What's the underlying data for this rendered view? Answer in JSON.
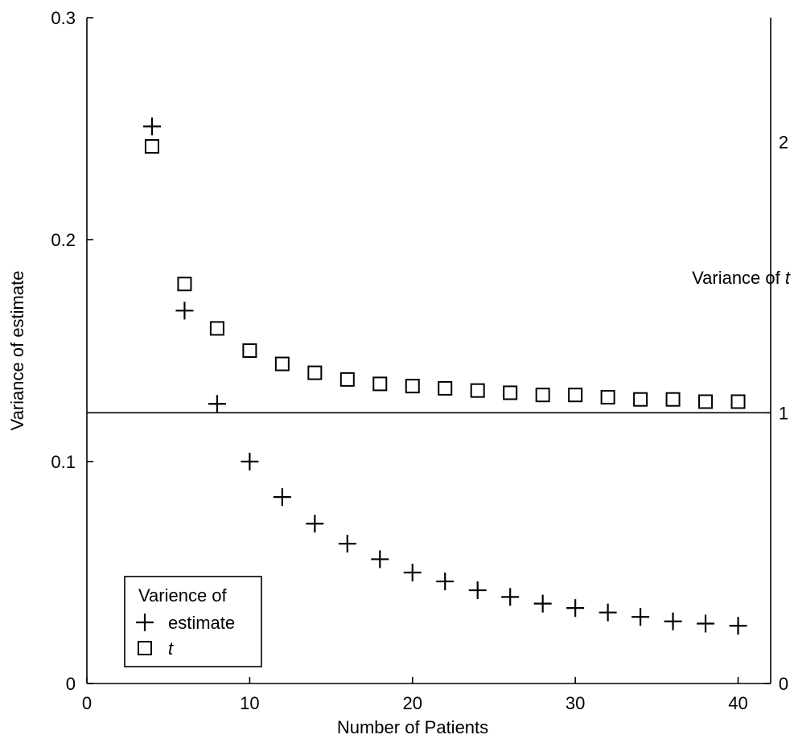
{
  "chart_data": {
    "type": "scatter",
    "xlabel": "Number of Patients",
    "ylabel": "Variance of estimate",
    "xlim": [
      0,
      42
    ],
    "ylim": [
      0,
      0.3
    ],
    "x_ticks": [
      "0",
      "10",
      "20",
      "30",
      "40"
    ],
    "y_ticks": [
      "0",
      "0.1",
      "0.2",
      "0.3"
    ],
    "right_axis": {
      "label_prefix": "Variance of ",
      "label_italic": "t",
      "ticks": [
        {
          "label": "0",
          "value": 0
        },
        {
          "label": "1",
          "value": 0.122
        },
        {
          "label": "2",
          "value": 0.244
        }
      ]
    },
    "reference_line": {
      "y": 0.122
    },
    "legend": {
      "title": "Varience of",
      "placement": "bottom-left",
      "entries": [
        {
          "marker": "plus",
          "label": "estimate",
          "italic": false
        },
        {
          "marker": "square",
          "label": "t",
          "italic": true
        }
      ]
    },
    "series": [
      {
        "name": "estimate",
        "marker": "plus",
        "x": [
          4,
          6,
          8,
          10,
          12,
          14,
          16,
          18,
          20,
          22,
          24,
          26,
          28,
          30,
          32,
          34,
          36,
          38,
          40
        ],
        "values": [
          0.251,
          0.168,
          0.126,
          0.1,
          0.084,
          0.072,
          0.063,
          0.056,
          0.05,
          0.046,
          0.042,
          0.039,
          0.036,
          0.034,
          0.032,
          0.03,
          0.028,
          0.027,
          0.026
        ]
      },
      {
        "name": "t",
        "marker": "square",
        "x": [
          4,
          6,
          8,
          10,
          12,
          14,
          16,
          18,
          20,
          22,
          24,
          26,
          28,
          30,
          32,
          34,
          36,
          38,
          40
        ],
        "values": [
          0.242,
          0.18,
          0.16,
          0.15,
          0.144,
          0.14,
          0.137,
          0.135,
          0.134,
          0.133,
          0.132,
          0.131,
          0.13,
          0.13,
          0.129,
          0.128,
          0.128,
          0.127,
          0.127
        ]
      }
    ]
  }
}
